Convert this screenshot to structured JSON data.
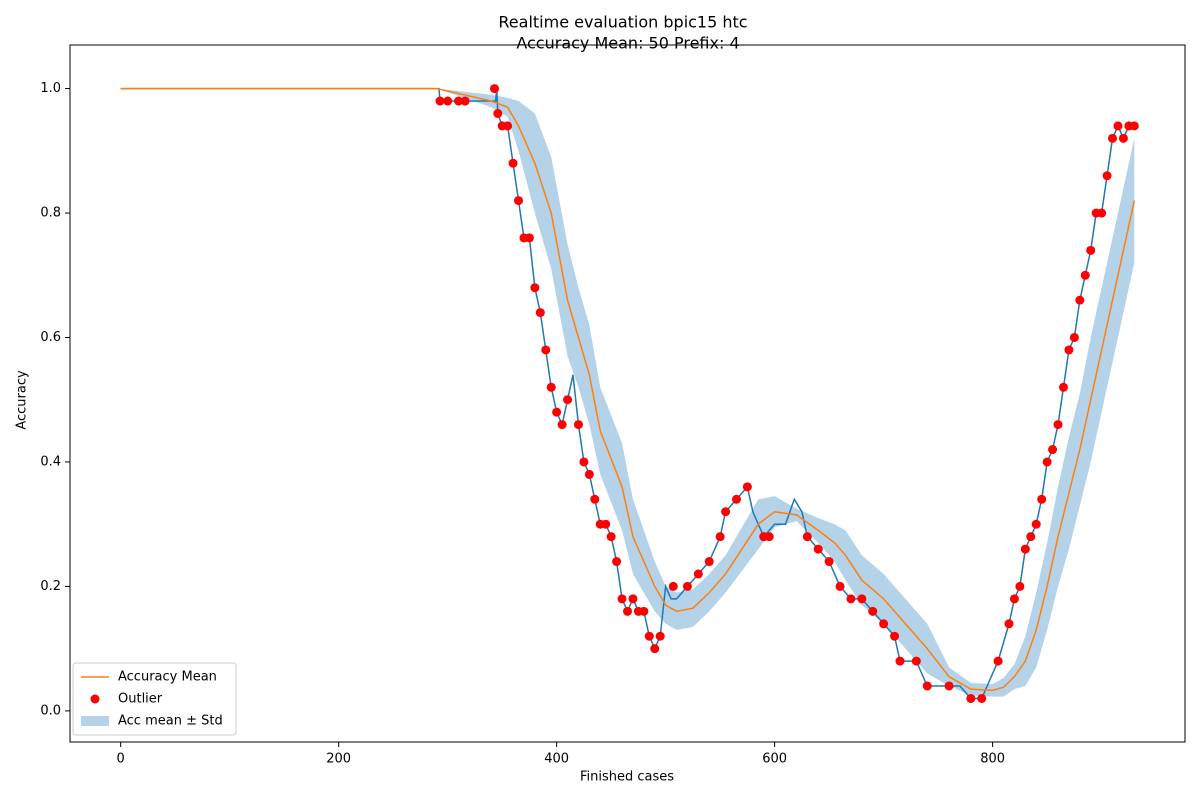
{
  "chart_data": {
    "type": "line",
    "title": "Realtime evaluation bpic15 htc",
    "subtitle": "Accuracy Mean: 50 Prefix: 4",
    "x_label": "Finished cases",
    "y_label": "Accuracy",
    "xlim": [
      -46.5,
      976.5
    ],
    "ylim": [
      -0.05,
      1.07
    ],
    "xticks": [
      0,
      200,
      400,
      600,
      800
    ],
    "yticks": [
      {
        "value": 0,
        "label": "0.0"
      },
      0.2,
      0.4,
      0.6,
      0.8,
      {
        "value": 1,
        "label": "1.0"
      }
    ],
    "legend": "lower left",
    "series": [
      {
        "type": "band",
        "name": "Acc mean ± Std",
        "color": "#b4d2e8",
        "x": [
          0,
          290,
          340,
          355,
          365,
          380,
          395,
          410,
          420,
          430,
          440,
          460,
          470,
          490,
          500,
          510,
          525,
          540,
          555,
          570,
          585,
          600,
          620,
          640,
          655,
          665,
          680,
          700,
          720,
          740,
          760,
          780,
          800,
          810,
          820,
          830,
          840,
          850,
          860,
          870,
          880,
          890,
          900,
          910,
          920,
          930
        ],
        "upper": [
          1.0,
          1.0,
          0.99,
          0.985,
          0.98,
          0.96,
          0.89,
          0.75,
          0.68,
          0.62,
          0.52,
          0.43,
          0.34,
          0.24,
          0.2,
          0.19,
          0.195,
          0.22,
          0.25,
          0.295,
          0.34,
          0.345,
          0.325,
          0.31,
          0.3,
          0.29,
          0.25,
          0.22,
          0.18,
          0.14,
          0.07,
          0.045,
          0.043,
          0.053,
          0.075,
          0.12,
          0.19,
          0.27,
          0.36,
          0.44,
          0.51,
          0.6,
          0.68,
          0.76,
          0.84,
          0.92
        ],
        "lower": [
          1.0,
          1.0,
          0.97,
          0.955,
          0.9,
          0.8,
          0.71,
          0.57,
          0.52,
          0.46,
          0.38,
          0.29,
          0.22,
          0.16,
          0.14,
          0.13,
          0.135,
          0.16,
          0.19,
          0.225,
          0.26,
          0.295,
          0.305,
          0.27,
          0.24,
          0.21,
          0.17,
          0.14,
          0.1,
          0.06,
          0.04,
          0.025,
          0.023,
          0.023,
          0.035,
          0.04,
          0.07,
          0.13,
          0.2,
          0.26,
          0.33,
          0.4,
          0.48,
          0.56,
          0.64,
          0.72
        ]
      },
      {
        "type": "line",
        "color": "#1f77b4",
        "x": [
          0,
          292,
          293,
          344,
          345,
          346,
          350,
          355,
          360,
          365,
          370,
          375,
          380,
          385,
          390,
          395,
          400,
          405,
          410,
          415,
          420,
          425,
          430,
          435,
          440,
          445,
          450,
          455,
          460,
          465,
          470,
          475,
          480,
          485,
          490,
          495,
          500,
          505,
          510,
          520,
          530,
          540,
          550,
          555,
          565,
          575,
          580,
          590,
          600,
          610,
          618,
          625,
          630,
          640,
          650,
          660,
          670,
          680,
          690,
          700,
          710,
          715,
          730,
          740,
          760,
          770,
          780,
          790,
          795,
          805,
          815,
          820,
          825,
          830,
          835,
          840,
          845,
          850,
          855,
          860,
          865,
          870,
          875,
          880,
          885,
          890,
          895,
          900,
          905,
          910,
          915,
          920,
          925,
          930
        ],
        "values": [
          1.0,
          1.0,
          0.98,
          0.98,
          1.0,
          0.96,
          0.94,
          0.94,
          0.88,
          0.82,
          0.76,
          0.76,
          0.68,
          0.64,
          0.58,
          0.52,
          0.48,
          0.46,
          0.5,
          0.54,
          0.46,
          0.4,
          0.38,
          0.34,
          0.3,
          0.3,
          0.28,
          0.24,
          0.18,
          0.16,
          0.18,
          0.16,
          0.16,
          0.12,
          0.1,
          0.12,
          0.2,
          0.18,
          0.18,
          0.2,
          0.22,
          0.24,
          0.28,
          0.32,
          0.34,
          0.36,
          0.32,
          0.28,
          0.3,
          0.3,
          0.34,
          0.32,
          0.28,
          0.26,
          0.24,
          0.2,
          0.18,
          0.18,
          0.16,
          0.14,
          0.12,
          0.08,
          0.08,
          0.04,
          0.04,
          0.04,
          0.02,
          0.02,
          0.04,
          0.08,
          0.14,
          0.18,
          0.2,
          0.26,
          0.28,
          0.3,
          0.34,
          0.4,
          0.42,
          0.46,
          0.52,
          0.58,
          0.6,
          0.66,
          0.7,
          0.74,
          0.8,
          0.8,
          0.86,
          0.92,
          0.94,
          0.92,
          0.94,
          0.94
        ]
      },
      {
        "type": "line",
        "name": "Accuracy Mean",
        "color": "#ff7f0e",
        "x": [
          0,
          290,
          340,
          355,
          365,
          380,
          395,
          410,
          420,
          430,
          440,
          460,
          470,
          490,
          500,
          510,
          525,
          540,
          555,
          570,
          585,
          600,
          620,
          640,
          655,
          665,
          680,
          700,
          720,
          740,
          760,
          780,
          800,
          810,
          820,
          830,
          840,
          850,
          860,
          870,
          880,
          890,
          900,
          910,
          920,
          930
        ],
        "values": [
          1.0,
          1.0,
          0.98,
          0.97,
          0.94,
          0.88,
          0.8,
          0.66,
          0.6,
          0.54,
          0.45,
          0.36,
          0.28,
          0.2,
          0.17,
          0.16,
          0.165,
          0.19,
          0.22,
          0.26,
          0.3,
          0.32,
          0.315,
          0.29,
          0.27,
          0.25,
          0.21,
          0.18,
          0.14,
          0.1,
          0.055,
          0.035,
          0.033,
          0.038,
          0.055,
          0.08,
          0.13,
          0.2,
          0.28,
          0.35,
          0.42,
          0.5,
          0.58,
          0.66,
          0.74,
          0.82
        ]
      },
      {
        "type": "scatter",
        "name": "Outlier",
        "color": "#ff0000",
        "x": [
          293,
          300,
          310,
          316,
          343,
          346,
          350,
          355,
          360,
          365,
          370,
          375,
          380,
          385,
          390,
          395,
          400,
          405,
          410,
          420,
          425,
          430,
          435,
          440,
          445,
          450,
          455,
          460,
          465,
          470,
          475,
          480,
          485,
          490,
          495,
          507,
          520,
          530,
          540,
          550,
          555,
          565,
          575,
          590,
          595,
          630,
          640,
          650,
          660,
          670,
          680,
          690,
          700,
          710,
          715,
          730,
          740,
          760,
          780,
          790,
          805,
          815,
          820,
          825,
          830,
          835,
          840,
          845,
          850,
          855,
          860,
          865,
          870,
          875,
          880,
          885,
          890,
          895,
          900,
          905,
          910,
          915,
          920,
          925,
          930
        ],
        "values": [
          0.98,
          0.98,
          0.98,
          0.98,
          1.0,
          0.96,
          0.94,
          0.94,
          0.88,
          0.82,
          0.76,
          0.76,
          0.68,
          0.64,
          0.58,
          0.52,
          0.48,
          0.46,
          0.5,
          0.46,
          0.4,
          0.38,
          0.34,
          0.3,
          0.3,
          0.28,
          0.24,
          0.18,
          0.16,
          0.18,
          0.16,
          0.16,
          0.12,
          0.1,
          0.12,
          0.2,
          0.2,
          0.22,
          0.24,
          0.28,
          0.32,
          0.34,
          0.36,
          0.28,
          0.28,
          0.28,
          0.26,
          0.24,
          0.2,
          0.18,
          0.18,
          0.16,
          0.14,
          0.12,
          0.08,
          0.08,
          0.04,
          0.04,
          0.02,
          0.02,
          0.08,
          0.14,
          0.18,
          0.2,
          0.26,
          0.28,
          0.3,
          0.34,
          0.4,
          0.42,
          0.46,
          0.52,
          0.58,
          0.6,
          0.66,
          0.7,
          0.74,
          0.8,
          0.8,
          0.86,
          0.92,
          0.94,
          0.92,
          0.94,
          0.94
        ]
      }
    ]
  }
}
